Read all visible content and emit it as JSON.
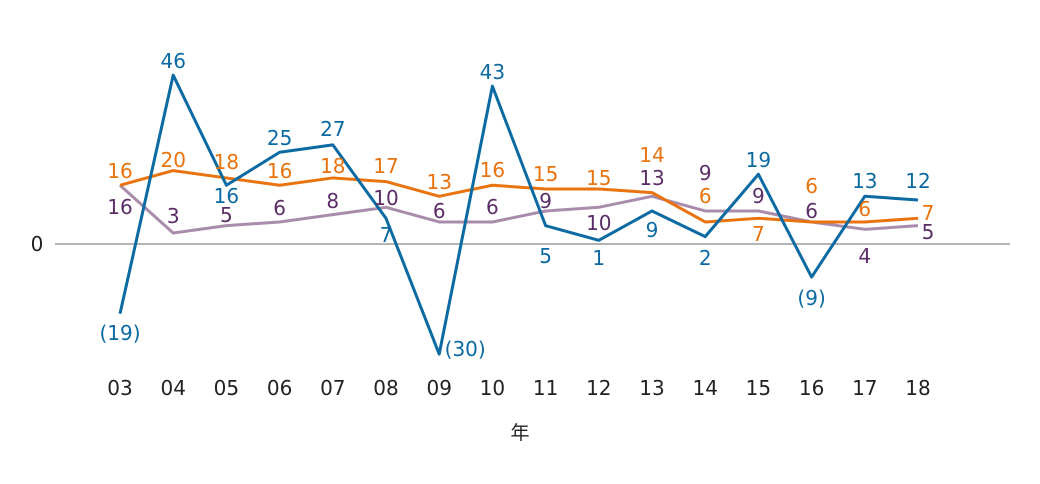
{
  "chart_data": {
    "type": "line",
    "title": "",
    "xlabel": "年",
    "ylabel": "",
    "x": [
      "03",
      "04",
      "05",
      "06",
      "07",
      "08",
      "09",
      "10",
      "11",
      "12",
      "13",
      "14",
      "15",
      "16",
      "17",
      "18"
    ],
    "y_tick_labels": [
      "0"
    ],
    "ylim": [
      -33,
      52
    ],
    "grid": false,
    "legend": "none",
    "series": [
      {
        "color": "#0b6aa2",
        "label_color": "#0b6aa2",
        "values": [
          -19,
          46,
          16,
          25,
          27,
          7,
          -30,
          43,
          5,
          1,
          9,
          2,
          19,
          -9,
          13,
          12
        ],
        "labels": [
          "(19)",
          "46",
          "16",
          "25",
          "27",
          "7",
          "(30)",
          "43",
          "5",
          "1",
          "9",
          "2",
          "19",
          "(9)",
          "13",
          "12"
        ]
      },
      {
        "color": "#e8730f",
        "label_color": "#e8730f",
        "values": [
          16,
          20,
          18,
          16,
          18,
          17,
          13,
          16,
          15,
          15,
          14,
          6,
          7,
          6,
          6,
          7
        ],
        "labels": [
          "16",
          "20",
          "18",
          "16",
          "18",
          "17",
          "13",
          "16",
          "15",
          "15",
          "14",
          "6",
          "7",
          "6",
          "6",
          "7"
        ]
      },
      {
        "color": "#a98cab",
        "label_color": "#5b2d67",
        "values": [
          16,
          3,
          5,
          6,
          8,
          10,
          6,
          6,
          9,
          10,
          13,
          9,
          9,
          6,
          4,
          5
        ],
        "labels": [
          "16",
          "3",
          "5",
          "6",
          "8",
          "10",
          "6",
          "6",
          "9",
          "10",
          "13",
          "9",
          "9",
          "6",
          "4",
          "5"
        ]
      }
    ]
  }
}
